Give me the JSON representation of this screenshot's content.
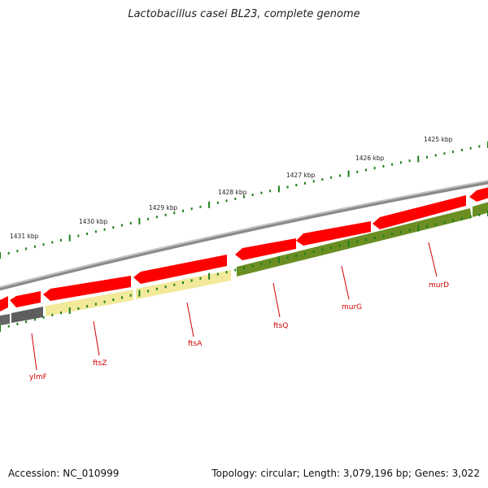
{
  "title": "Lactobacillus casei BL23, complete genome",
  "footer": {
    "accession": "Accession: NC_010999",
    "summary": "Topology: circular; Length: 3,079,196 bp; Genes: 3,022"
  },
  "kbp_labels": [
    "1431 kbp",
    "1430 kbp",
    "1429 kbp",
    "1428 kbp",
    "1427 kbp",
    "1426 kbp",
    "1425 kbp"
  ],
  "gene_labels": [
    "ylmF",
    "ftsZ",
    "ftsA",
    "ftsQ",
    "murG",
    "murD"
  ],
  "colors": {
    "backbone": "#7a7a7a",
    "cds": "#ff0000",
    "gene_dark": "#5a5a5a",
    "gene_yellow": "#f2e99a",
    "gene_green": "#6b8e23",
    "tick": "#1a7f1a",
    "label": "#d40000"
  }
}
